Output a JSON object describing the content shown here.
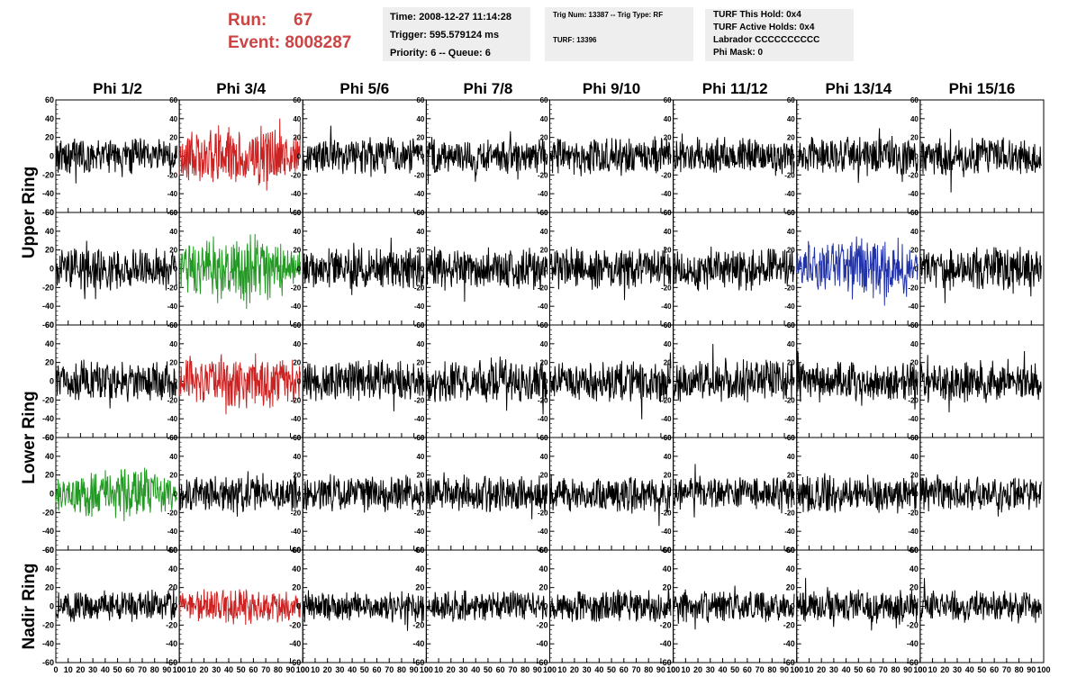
{
  "header": {
    "run_label": "Run:",
    "run_value": "67",
    "event_label": "Event:",
    "event_value": "8008287"
  },
  "info_box_1": {
    "time": "Time: 2008-12-27 11:14:28",
    "trigger": "Trigger: 595.579124 ms",
    "priority": "Priority: 6 -- Queue: 6"
  },
  "info_box_2": {
    "trig": "Trig Num: 13387 -- Trig Type: RF",
    "turf": "TURF: 13396"
  },
  "info_box_3": {
    "this_hold": "TURF This Hold: 0x4",
    "active_holds": "TURF Active Holds: 0x4",
    "labrador": "Labrador CCCCCCCCCC",
    "phi_mask": "Phi Mask: 0"
  },
  "chart_data": {
    "type": "line",
    "columns": [
      "Phi 1/2",
      "Phi 3/4",
      "Phi 5/6",
      "Phi 7/8",
      "Phi 9/10",
      "Phi 11/12",
      "Phi 13/14",
      "Phi 15/16"
    ],
    "ring_labels": [
      "Upper Ring",
      "Lower Ring",
      "Nadir Ring"
    ],
    "rows": 5,
    "ring_row_spans": [
      [
        0,
        1
      ],
      [
        2,
        3
      ],
      [
        4,
        4
      ]
    ],
    "xlim": [
      0,
      100
    ],
    "ylim": [
      -60,
      60
    ],
    "x_ticks": [
      0,
      10,
      20,
      30,
      40,
      50,
      60,
      70,
      80,
      90,
      100
    ],
    "y_ticks": [
      -60,
      -40,
      -20,
      0,
      20,
      40,
      60
    ],
    "samples_per_trace": 260,
    "trace_x_range": [
      0,
      98
    ],
    "colors": {
      "default": "#000000",
      "red": "#cc2222",
      "green": "#229922",
      "blue": "#2233aa"
    },
    "highlighted_panels": [
      {
        "row": 0,
        "col": 1,
        "color": "red",
        "amplitude": 28
      },
      {
        "row": 1,
        "col": 1,
        "color": "green",
        "amplitude": 30
      },
      {
        "row": 1,
        "col": 6,
        "color": "blue",
        "amplitude": 27
      },
      {
        "row": 2,
        "col": 1,
        "color": "red",
        "amplitude": 26
      },
      {
        "row": 3,
        "col": 0,
        "color": "green",
        "amplitude": 24
      },
      {
        "row": 4,
        "col": 1,
        "color": "red",
        "amplitude": 16
      }
    ],
    "default_amplitude": [
      16,
      18,
      18,
      16,
      14
    ]
  }
}
